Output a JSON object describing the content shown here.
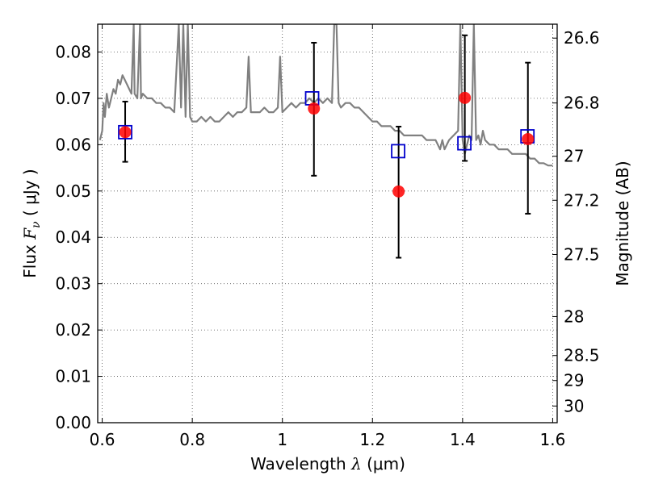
{
  "chart_data": {
    "type": "scatter",
    "xlabel": {
      "prefix": "Wavelength  ",
      "symbol": "λ",
      "units": "(μm)"
    },
    "ylabel": {
      "prefix": "Flux  ",
      "symbol": "F",
      "subscript": "ν",
      "units": "( μJy )"
    },
    "ylabel_right": "Magnitude (AB)",
    "xlim": [
      0.59,
      1.61
    ],
    "ylim": [
      0.0,
      0.086
    ],
    "x_ticks": [
      {
        "value": 0.6,
        "label": "0.6"
      },
      {
        "value": 0.8,
        "label": "0.8"
      },
      {
        "value": 1.0,
        "label": "1"
      },
      {
        "value": 1.2,
        "label": "1.2"
      },
      {
        "value": 1.4,
        "label": "1.4"
      },
      {
        "value": 1.6,
        "label": "1.6"
      }
    ],
    "y_ticks": [
      {
        "value": 0.0,
        "label": "0.00"
      },
      {
        "value": 0.01,
        "label": "0.01"
      },
      {
        "value": 0.02,
        "label": "0.02"
      },
      {
        "value": 0.03,
        "label": "0.03"
      },
      {
        "value": 0.04,
        "label": "0.04"
      },
      {
        "value": 0.05,
        "label": "0.05"
      },
      {
        "value": 0.06,
        "label": "0.06"
      },
      {
        "value": 0.07,
        "label": "0.07"
      },
      {
        "value": 0.08,
        "label": "0.08"
      }
    ],
    "right_ticks": [
      {
        "flux": 0.083,
        "label": "26.6"
      },
      {
        "flux": 0.069,
        "label": "26.8"
      },
      {
        "flux": 0.0575,
        "label": "27"
      },
      {
        "flux": 0.048,
        "label": "27.2"
      },
      {
        "flux": 0.0363,
        "label": "27.5"
      },
      {
        "flux": 0.0229,
        "label": "28"
      },
      {
        "flux": 0.0145,
        "label": "28.5"
      },
      {
        "flux": 0.0091,
        "label": "29"
      },
      {
        "flux": 0.0036,
        "label": "30"
      }
    ],
    "grid": true,
    "series": [
      {
        "kind": "line",
        "color": "#808080",
        "points": [
          [
            0.595,
            0.061
          ],
          [
            0.6,
            0.063
          ],
          [
            0.603,
            0.069
          ],
          [
            0.606,
            0.066
          ],
          [
            0.61,
            0.071
          ],
          [
            0.615,
            0.068
          ],
          [
            0.62,
            0.07
          ],
          [
            0.625,
            0.072
          ],
          [
            0.63,
            0.071
          ],
          [
            0.635,
            0.074
          ],
          [
            0.64,
            0.073
          ],
          [
            0.645,
            0.075
          ],
          [
            0.65,
            0.074
          ],
          [
            0.655,
            0.073
          ],
          [
            0.66,
            0.072
          ],
          [
            0.665,
            0.071
          ],
          [
            0.67,
            0.086
          ],
          [
            0.672,
            0.071
          ],
          [
            0.678,
            0.07
          ],
          [
            0.684,
            0.086
          ],
          [
            0.686,
            0.07
          ],
          [
            0.69,
            0.071
          ],
          [
            0.7,
            0.07
          ],
          [
            0.71,
            0.07
          ],
          [
            0.72,
            0.069
          ],
          [
            0.73,
            0.069
          ],
          [
            0.74,
            0.068
          ],
          [
            0.75,
            0.068
          ],
          [
            0.76,
            0.067
          ],
          [
            0.77,
            0.086
          ],
          [
            0.775,
            0.068
          ],
          [
            0.78,
            0.086
          ],
          [
            0.785,
            0.066
          ],
          [
            0.79,
            0.086
          ],
          [
            0.795,
            0.066
          ],
          [
            0.8,
            0.065
          ],
          [
            0.81,
            0.065
          ],
          [
            0.82,
            0.066
          ],
          [
            0.83,
            0.065
          ],
          [
            0.84,
            0.066
          ],
          [
            0.85,
            0.065
          ],
          [
            0.86,
            0.065
          ],
          [
            0.87,
            0.066
          ],
          [
            0.88,
            0.067
          ],
          [
            0.89,
            0.066
          ],
          [
            0.9,
            0.067
          ],
          [
            0.91,
            0.067
          ],
          [
            0.92,
            0.068
          ],
          [
            0.925,
            0.079
          ],
          [
            0.93,
            0.067
          ],
          [
            0.94,
            0.067
          ],
          [
            0.95,
            0.067
          ],
          [
            0.96,
            0.068
          ],
          [
            0.97,
            0.067
          ],
          [
            0.98,
            0.067
          ],
          [
            0.99,
            0.068
          ],
          [
            0.995,
            0.079
          ],
          [
            1.0,
            0.067
          ],
          [
            1.01,
            0.068
          ],
          [
            1.02,
            0.069
          ],
          [
            1.03,
            0.068
          ],
          [
            1.04,
            0.069
          ],
          [
            1.05,
            0.069
          ],
          [
            1.06,
            0.07
          ],
          [
            1.07,
            0.069
          ],
          [
            1.08,
            0.07
          ],
          [
            1.09,
            0.069
          ],
          [
            1.1,
            0.07
          ],
          [
            1.11,
            0.069
          ],
          [
            1.115,
            0.086
          ],
          [
            1.12,
            0.086
          ],
          [
            1.125,
            0.069
          ],
          [
            1.13,
            0.068
          ],
          [
            1.14,
            0.069
          ],
          [
            1.15,
            0.069
          ],
          [
            1.16,
            0.068
          ],
          [
            1.17,
            0.068
          ],
          [
            1.18,
            0.067
          ],
          [
            1.19,
            0.066
          ],
          [
            1.2,
            0.065
          ],
          [
            1.21,
            0.065
          ],
          [
            1.22,
            0.064
          ],
          [
            1.23,
            0.064
          ],
          [
            1.24,
            0.064
          ],
          [
            1.25,
            0.063
          ],
          [
            1.26,
            0.063
          ],
          [
            1.27,
            0.062
          ],
          [
            1.28,
            0.062
          ],
          [
            1.29,
            0.062
          ],
          [
            1.3,
            0.062
          ],
          [
            1.31,
            0.062
          ],
          [
            1.32,
            0.061
          ],
          [
            1.33,
            0.061
          ],
          [
            1.34,
            0.061
          ],
          [
            1.345,
            0.06
          ],
          [
            1.35,
            0.059
          ],
          [
            1.355,
            0.061
          ],
          [
            1.36,
            0.059
          ],
          [
            1.37,
            0.061
          ],
          [
            1.38,
            0.062
          ],
          [
            1.39,
            0.063
          ],
          [
            1.395,
            0.086
          ],
          [
            1.4,
            0.061
          ],
          [
            1.405,
            0.058
          ],
          [
            1.41,
            0.06
          ],
          [
            1.415,
            0.062
          ],
          [
            1.42,
            0.061
          ],
          [
            1.425,
            0.086
          ],
          [
            1.43,
            0.061
          ],
          [
            1.435,
            0.062
          ],
          [
            1.44,
            0.06
          ],
          [
            1.445,
            0.063
          ],
          [
            1.45,
            0.061
          ],
          [
            1.46,
            0.06
          ],
          [
            1.47,
            0.06
          ],
          [
            1.48,
            0.059
          ],
          [
            1.49,
            0.059
          ],
          [
            1.5,
            0.059
          ],
          [
            1.51,
            0.058
          ],
          [
            1.52,
            0.058
          ],
          [
            1.53,
            0.058
          ],
          [
            1.54,
            0.058
          ],
          [
            1.55,
            0.057
          ],
          [
            1.56,
            0.057
          ],
          [
            1.57,
            0.056
          ],
          [
            1.58,
            0.056
          ],
          [
            1.59,
            0.0555
          ],
          [
            1.6,
            0.0555
          ]
        ]
      },
      {
        "kind": "errorbar-points",
        "color": "#ff0000",
        "points": [
          {
            "x": 0.651,
            "y": 0.0627,
            "err_low": 0.0064,
            "err_high": 0.0066
          },
          {
            "x": 1.07,
            "y": 0.0678,
            "err_low": 0.0145,
            "err_high": 0.0142
          },
          {
            "x": 1.258,
            "y": 0.0499,
            "err_low": 0.0143,
            "err_high": 0.014
          },
          {
            "x": 1.405,
            "y": 0.0701,
            "err_low": 0.0136,
            "err_high": 0.0135
          },
          {
            "x": 1.545,
            "y": 0.0612,
            "err_low": 0.0161,
            "err_high": 0.0165
          }
        ]
      },
      {
        "kind": "open-squares",
        "color": "#0000cc",
        "points": [
          {
            "x": 0.651,
            "y": 0.0627
          },
          {
            "x": 1.066,
            "y": 0.07
          },
          {
            "x": 1.257,
            "y": 0.0586
          },
          {
            "x": 1.404,
            "y": 0.0603
          },
          {
            "x": 1.544,
            "y": 0.0618
          }
        ]
      }
    ]
  }
}
